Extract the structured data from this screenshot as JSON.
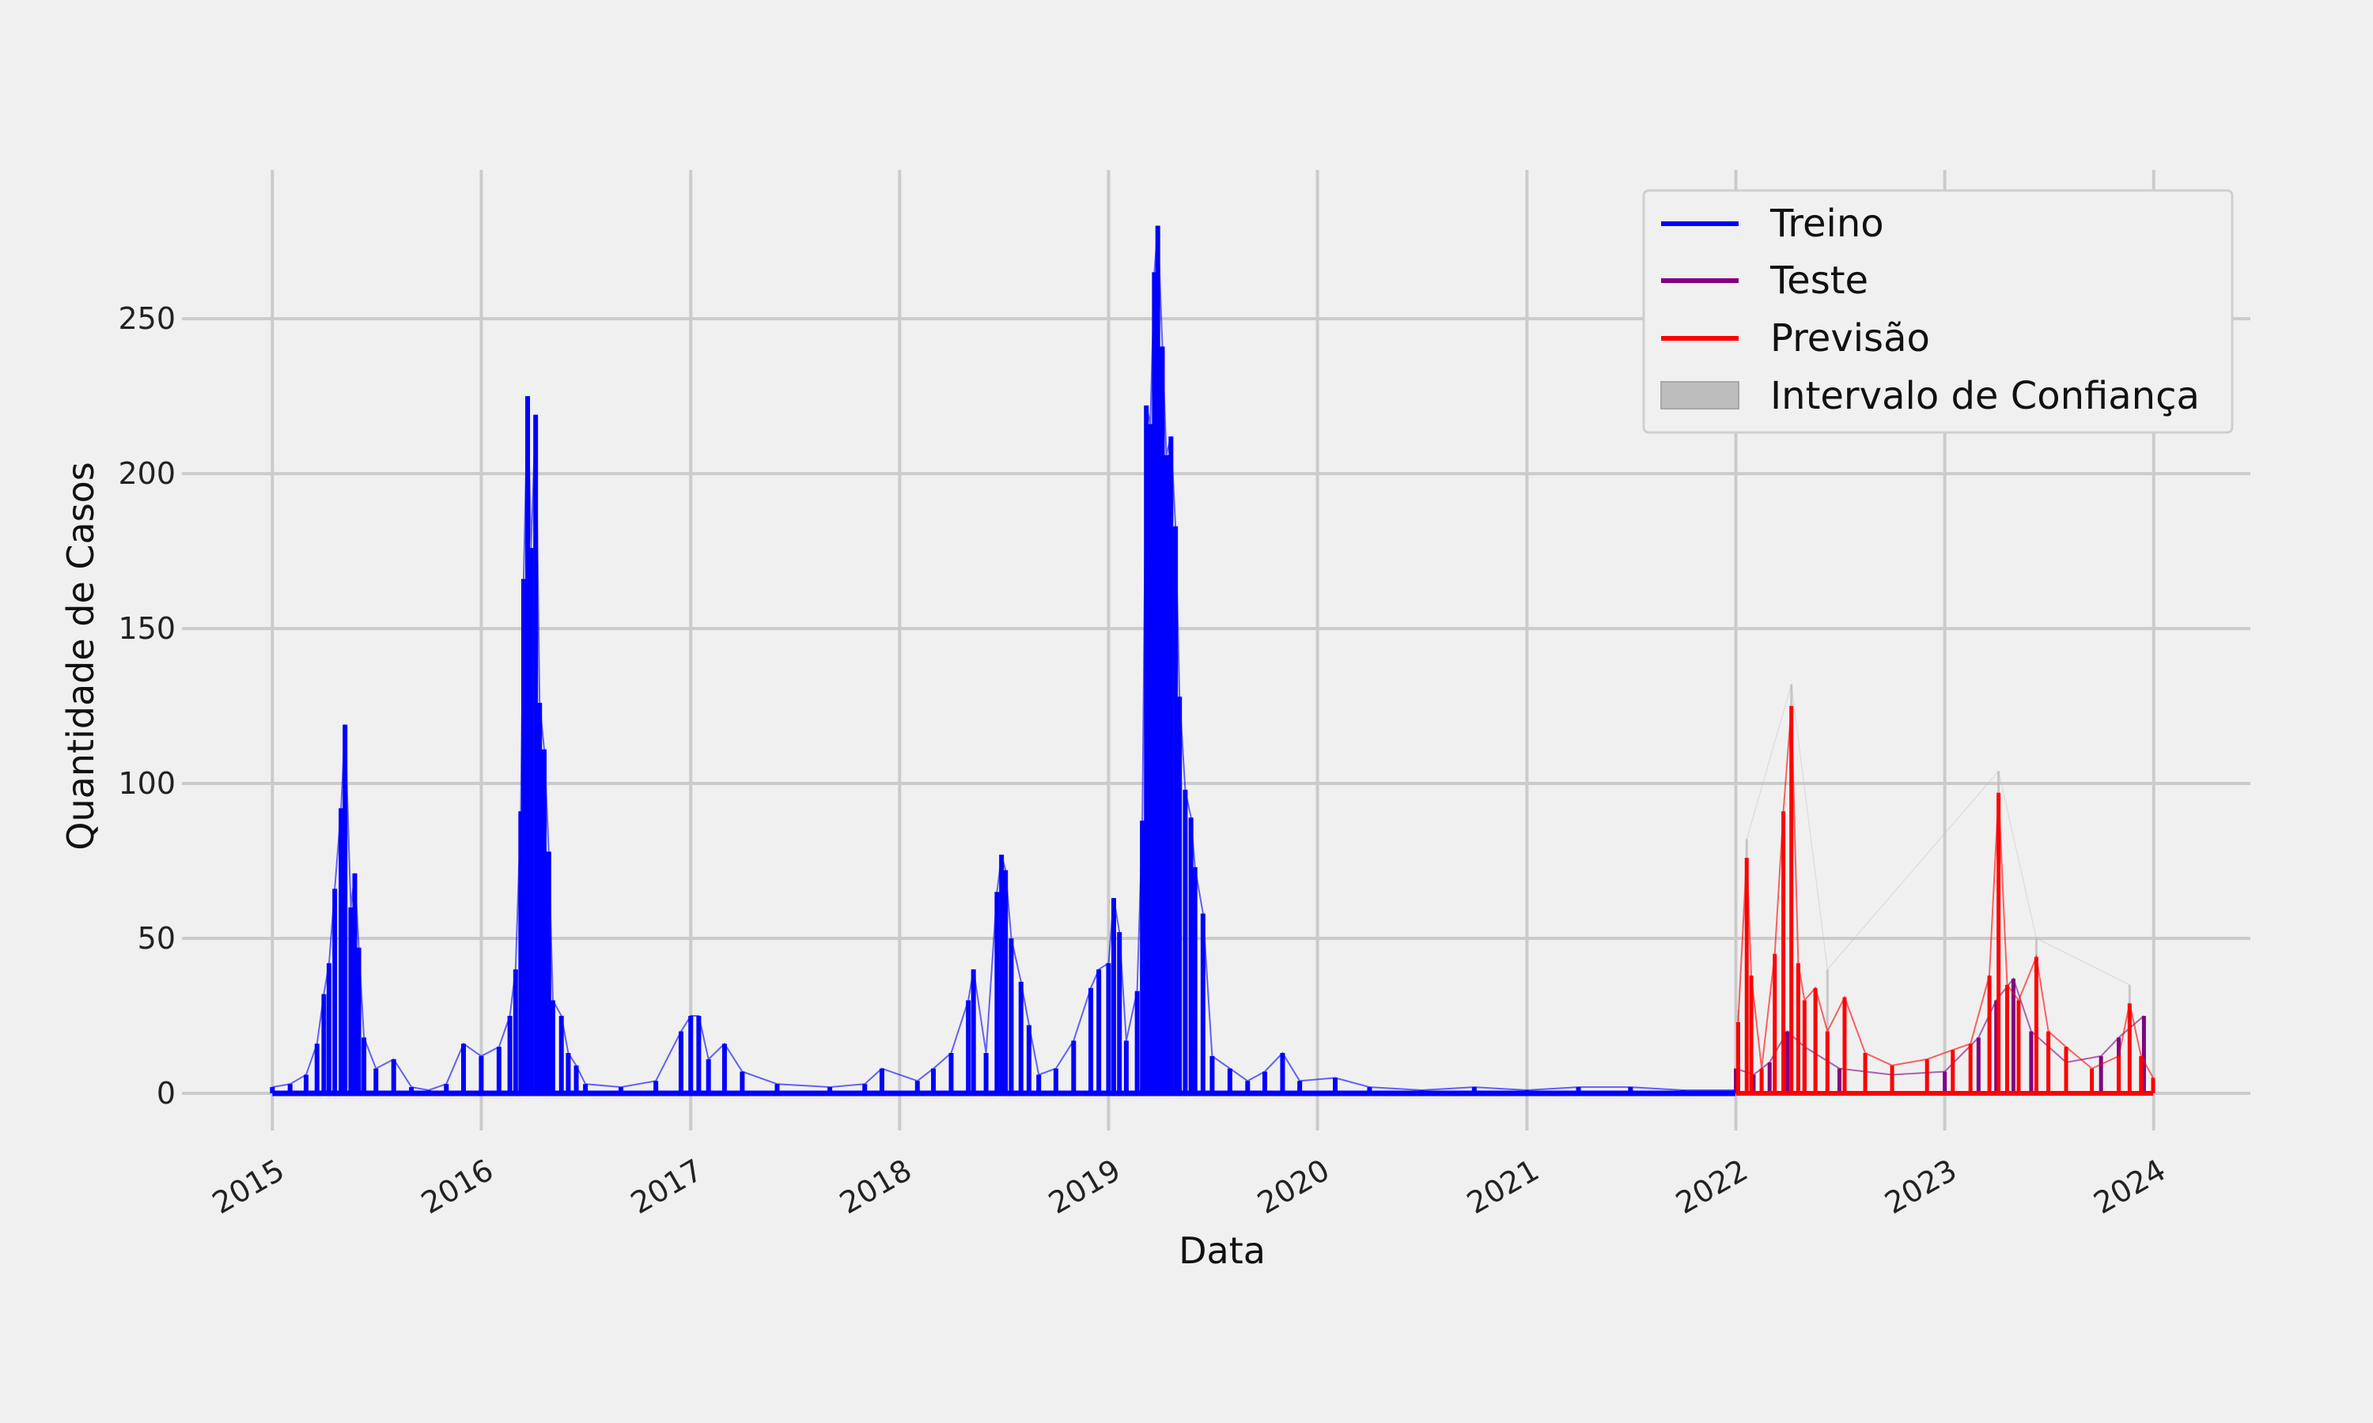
{
  "chart_data": {
    "type": "line",
    "title": "",
    "xlabel": "Data",
    "ylabel": "Quantidade de Casos",
    "x_ticks": [
      "2015",
      "2016",
      "2017",
      "2018",
      "2019",
      "2020",
      "2021",
      "2022",
      "2023",
      "2024"
    ],
    "y_ticks": [
      "0",
      "50",
      "100",
      "150",
      "200",
      "250"
    ],
    "xlim": [
      "2014-07-27",
      "2024-06-18"
    ],
    "ylim": [
      -12,
      298
    ],
    "grid": true,
    "legend_position": "top-right",
    "colors": {
      "background": "#f0f0f0",
      "grid": "#cbcbcb",
      "treino": "#0000ff",
      "teste": "#800080",
      "previsao": "#ff0000",
      "intervalo": "#bdbdbd"
    },
    "series": [
      {
        "name": "Treino",
        "color": "#0000ff",
        "points": [
          [
            "2015-01-01",
            2
          ],
          [
            "2015-02-01",
            3
          ],
          [
            "2015-03-01",
            6
          ],
          [
            "2015-03-20",
            16
          ],
          [
            "2015-04-01",
            32
          ],
          [
            "2015-04-10",
            42
          ],
          [
            "2015-04-20",
            66
          ],
          [
            "2015-05-01",
            92
          ],
          [
            "2015-05-08",
            119
          ],
          [
            "2015-05-18",
            60
          ],
          [
            "2015-05-25",
            71
          ],
          [
            "2015-06-01",
            47
          ],
          [
            "2015-06-10",
            18
          ],
          [
            "2015-07-01",
            8
          ],
          [
            "2015-08-01",
            11
          ],
          [
            "2015-09-01",
            2
          ],
          [
            "2015-10-01",
            1
          ],
          [
            "2015-11-01",
            3
          ],
          [
            "2015-12-01",
            16
          ],
          [
            "2016-01-01",
            12
          ],
          [
            "2016-02-01",
            15
          ],
          [
            "2016-02-20",
            25
          ],
          [
            "2016-03-01",
            40
          ],
          [
            "2016-03-10",
            91
          ],
          [
            "2016-03-15",
            166
          ],
          [
            "2016-03-22",
            225
          ],
          [
            "2016-03-28",
            176
          ],
          [
            "2016-04-05",
            219
          ],
          [
            "2016-04-12",
            126
          ],
          [
            "2016-04-20",
            111
          ],
          [
            "2016-04-28",
            78
          ],
          [
            "2016-05-05",
            30
          ],
          [
            "2016-05-20",
            25
          ],
          [
            "2016-06-01",
            13
          ],
          [
            "2016-06-15",
            9
          ],
          [
            "2016-07-01",
            3
          ],
          [
            "2016-09-01",
            2
          ],
          [
            "2016-11-01",
            4
          ],
          [
            "2016-12-15",
            20
          ],
          [
            "2017-01-01",
            25
          ],
          [
            "2017-01-15",
            25
          ],
          [
            "2017-02-01",
            11
          ],
          [
            "2017-03-01",
            16
          ],
          [
            "2017-04-01",
            7
          ],
          [
            "2017-06-01",
            3
          ],
          [
            "2017-09-01",
            2
          ],
          [
            "2017-11-01",
            3
          ],
          [
            "2017-12-01",
            8
          ],
          [
            "2018-02-01",
            4
          ],
          [
            "2018-03-01",
            8
          ],
          [
            "2018-04-01",
            13
          ],
          [
            "2018-05-01",
            30
          ],
          [
            "2018-05-10",
            40
          ],
          [
            "2018-06-01",
            13
          ],
          [
            "2018-06-20",
            65
          ],
          [
            "2018-06-28",
            77
          ],
          [
            "2018-07-05",
            72
          ],
          [
            "2018-07-15",
            50
          ],
          [
            "2018-08-01",
            36
          ],
          [
            "2018-08-15",
            22
          ],
          [
            "2018-09-01",
            6
          ],
          [
            "2018-10-01",
            8
          ],
          [
            "2018-11-01",
            17
          ],
          [
            "2018-12-01",
            34
          ],
          [
            "2018-12-15",
            40
          ],
          [
            "2019-01-01",
            42
          ],
          [
            "2019-01-10",
            63
          ],
          [
            "2019-01-20",
            52
          ],
          [
            "2019-02-01",
            17
          ],
          [
            "2019-02-20",
            33
          ],
          [
            "2019-03-01",
            88
          ],
          [
            "2019-03-08",
            222
          ],
          [
            "2019-03-15",
            216
          ],
          [
            "2019-03-22",
            265
          ],
          [
            "2019-03-28",
            280
          ],
          [
            "2019-04-05",
            241
          ],
          [
            "2019-04-12",
            206
          ],
          [
            "2019-04-20",
            212
          ],
          [
            "2019-04-28",
            183
          ],
          [
            "2019-05-05",
            128
          ],
          [
            "2019-05-15",
            98
          ],
          [
            "2019-05-25",
            89
          ],
          [
            "2019-06-01",
            73
          ],
          [
            "2019-06-15",
            58
          ],
          [
            "2019-07-01",
            12
          ],
          [
            "2019-08-01",
            8
          ],
          [
            "2019-09-01",
            4
          ],
          [
            "2019-10-01",
            7
          ],
          [
            "2019-11-01",
            13
          ],
          [
            "2019-12-01",
            4
          ],
          [
            "2020-02-01",
            5
          ],
          [
            "2020-04-01",
            2
          ],
          [
            "2020-07-01",
            1
          ],
          [
            "2020-10-01",
            2
          ],
          [
            "2021-01-01",
            1
          ],
          [
            "2021-04-01",
            2
          ],
          [
            "2021-07-01",
            2
          ],
          [
            "2021-10-01",
            1
          ],
          [
            "2021-12-31",
            1
          ]
        ]
      },
      {
        "name": "Teste",
        "color": "#800080",
        "points": [
          [
            "2022-01-01",
            8
          ],
          [
            "2022-02-01",
            6
          ],
          [
            "2022-03-01",
            10
          ],
          [
            "2022-04-01",
            20
          ],
          [
            "2022-05-01",
            15
          ],
          [
            "2022-07-01",
            8
          ],
          [
            "2022-10-01",
            6
          ],
          [
            "2023-01-01",
            7
          ],
          [
            "2023-03-01",
            18
          ],
          [
            "2023-04-01",
            30
          ],
          [
            "2023-05-01",
            37
          ],
          [
            "2023-06-01",
            20
          ],
          [
            "2023-08-01",
            10
          ],
          [
            "2023-10-01",
            12
          ],
          [
            "2023-11-01",
            18
          ],
          [
            "2023-12-15",
            25
          ]
        ]
      },
      {
        "name": "Previsão",
        "color": "#ff0000",
        "points": [
          [
            "2022-01-05",
            23
          ],
          [
            "2022-01-20",
            76
          ],
          [
            "2022-01-28",
            38
          ],
          [
            "2022-02-15",
            8
          ],
          [
            "2022-03-10",
            45
          ],
          [
            "2022-03-25",
            91
          ],
          [
            "2022-04-08",
            125
          ],
          [
            "2022-04-20",
            42
          ],
          [
            "2022-05-01",
            30
          ],
          [
            "2022-05-20",
            34
          ],
          [
            "2022-06-10",
            20
          ],
          [
            "2022-07-10",
            31
          ],
          [
            "2022-08-15",
            13
          ],
          [
            "2022-10-01",
            9
          ],
          [
            "2022-12-01",
            11
          ],
          [
            "2023-01-15",
            14
          ],
          [
            "2023-02-15",
            16
          ],
          [
            "2023-03-20",
            38
          ],
          [
            "2023-04-05",
            97
          ],
          [
            "2023-04-20",
            35
          ],
          [
            "2023-05-10",
            30
          ],
          [
            "2023-06-10",
            44
          ],
          [
            "2023-07-01",
            20
          ],
          [
            "2023-08-01",
            15
          ],
          [
            "2023-09-15",
            8
          ],
          [
            "2023-11-01",
            12
          ],
          [
            "2023-11-20",
            29
          ],
          [
            "2023-12-10",
            12
          ],
          [
            "2023-12-31",
            5
          ]
        ]
      },
      {
        "name": "Intervalo de Confiança",
        "color": "#bdbdbd",
        "points": [
          [
            "2022-01-05",
            27
          ],
          [
            "2022-01-20",
            82
          ],
          [
            "2022-04-08",
            132
          ],
          [
            "2022-06-10",
            40
          ],
          [
            "2023-04-05",
            104
          ],
          [
            "2023-06-10",
            50
          ],
          [
            "2023-11-20",
            35
          ]
        ]
      }
    ]
  }
}
